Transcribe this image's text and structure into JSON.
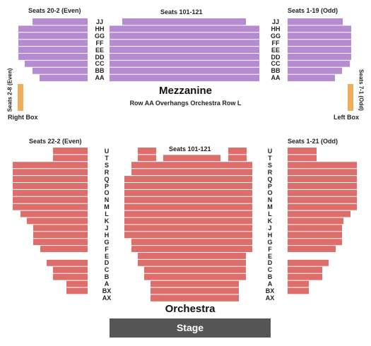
{
  "colors": {
    "mezzanine": "#b58ccf",
    "orchestra": "#dd6e6b",
    "box": "#efad59",
    "stage": "#555555",
    "divider": "#ffffff"
  },
  "mezzanine": {
    "title": "Mezzanine",
    "subtitle": "Row AA Overhangs Orchestra Row L",
    "left_label": "Seats 20-2 (Even)",
    "center_label": "Seats 101-121",
    "right_label": "Seats 1-19 (Odd)",
    "rows": [
      "JJ",
      "HH",
      "GG",
      "FF",
      "EE",
      "DD",
      "CC",
      "BB",
      "AA"
    ]
  },
  "boxes": {
    "right_box_label": "Right Box",
    "right_box_seats": "Seats 2-8 (Even)",
    "left_box_label": "Left Box",
    "left_box_seats": "Seats 7-1 (Odd)"
  },
  "orchestra": {
    "title": "Orchestra",
    "left_label": "Seats 22-2 (Even)",
    "center_label": "Seats 101-121",
    "right_label": "Seats 1-21 (Odd)",
    "rows": [
      "U",
      "T",
      "S",
      "R",
      "Q",
      "P",
      "O",
      "N",
      "M",
      "L",
      "K",
      "J",
      "H",
      "G",
      "F",
      "E",
      "D",
      "C",
      "B",
      "A",
      "BX",
      "AX"
    ]
  },
  "stage": {
    "label": "Stage"
  }
}
